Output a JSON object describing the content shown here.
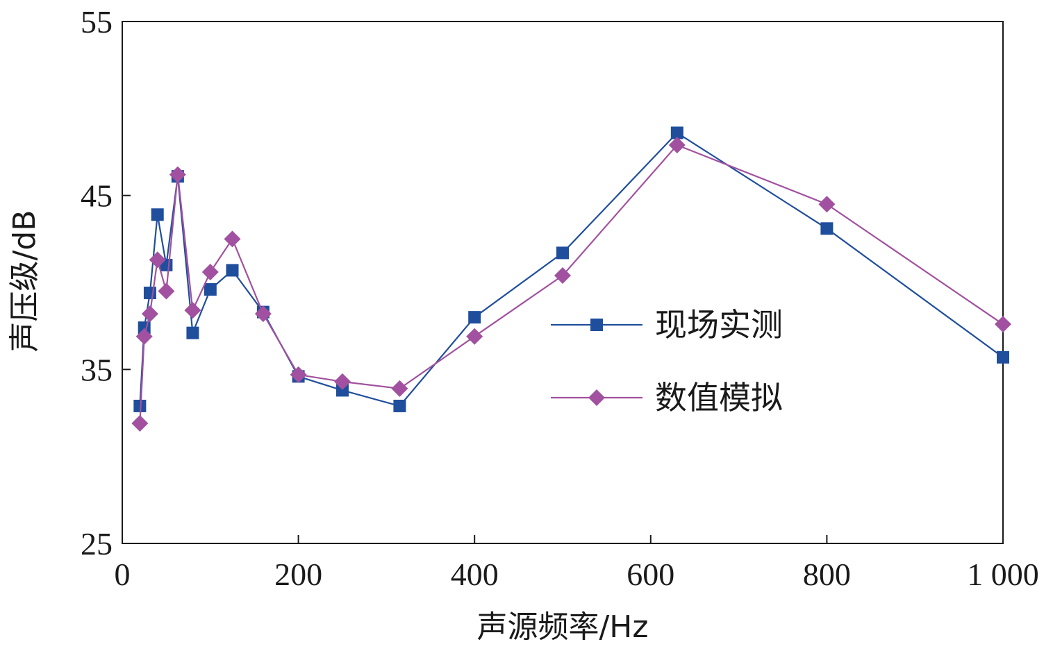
{
  "chart_data": {
    "type": "line",
    "xlabel": "声源频率/Hz",
    "ylabel": "声压级/dB",
    "xlim": [
      0,
      1000
    ],
    "ylim": [
      25,
      55
    ],
    "xticks": [
      0,
      200,
      400,
      600,
      800,
      1000
    ],
    "xtick_labels": [
      "0",
      "200",
      "400",
      "600",
      "800",
      "1 000"
    ],
    "yticks": [
      25,
      35,
      45,
      55
    ],
    "ytick_labels": [
      "25",
      "35",
      "45",
      "55"
    ],
    "grid": false,
    "legend_position": "right-middle",
    "series": [
      {
        "name": "现场实测",
        "color": "#1f4e9c",
        "marker": "square",
        "x": [
          20,
          25,
          31.5,
          40,
          50,
          63,
          80,
          100,
          125,
          160,
          200,
          250,
          315,
          400,
          500,
          630,
          800,
          1000
        ],
        "y": [
          32.9,
          37.4,
          39.4,
          43.9,
          41.0,
          46.1,
          37.1,
          39.6,
          40.7,
          38.3,
          34.6,
          33.8,
          32.9,
          38.0,
          41.7,
          48.6,
          43.1,
          35.7
        ]
      },
      {
        "name": "数值模拟",
        "color": "#a1519f",
        "marker": "diamond",
        "x": [
          20,
          25,
          31.5,
          40,
          50,
          63,
          80,
          100,
          125,
          160,
          200,
          250,
          315,
          400,
          500,
          630,
          800,
          1000
        ],
        "y": [
          31.9,
          36.9,
          38.2,
          41.3,
          39.5,
          46.2,
          38.4,
          40.6,
          42.5,
          38.2,
          34.7,
          34.3,
          33.9,
          36.9,
          40.4,
          47.9,
          44.5,
          37.6
        ]
      }
    ]
  }
}
